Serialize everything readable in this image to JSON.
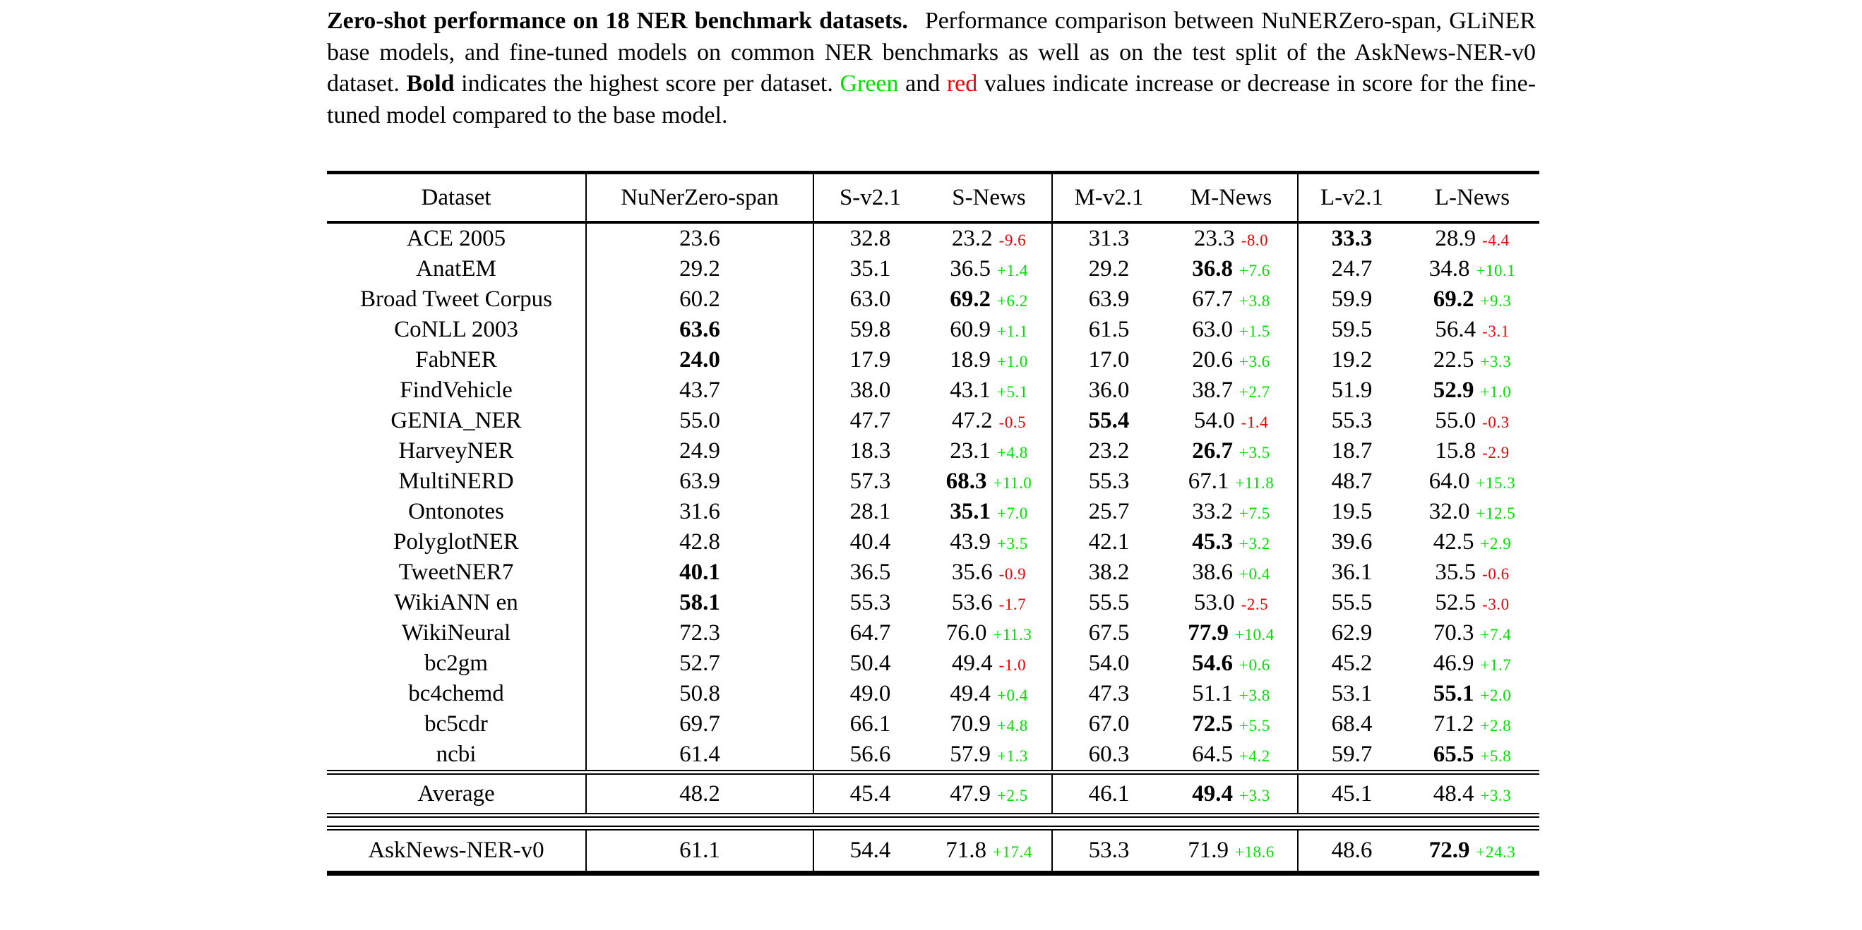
{
  "colors": {
    "green": "#00e100",
    "red": "#f30000",
    "text": "#000000",
    "background": "#ffffff"
  },
  "caption": {
    "segments": [
      {
        "text": "Zero-shot performance on 18 NER benchmark datasets.",
        "style": "bold",
        "gap_after": true
      },
      {
        "text": "Performance comparison between NuNERZero-span, GLiNER base models, and fine-tuned models on common NER benchmarks as well as on the test split of the AskNews-NER-v0 dataset. ",
        "style": "normal"
      },
      {
        "text": "Bold",
        "style": "bold"
      },
      {
        "text": " indicates the highest score per dataset. ",
        "style": "normal"
      },
      {
        "text": "Green",
        "style": "green"
      },
      {
        "text": " and ",
        "style": "normal"
      },
      {
        "text": "red",
        "style": "red"
      },
      {
        "text": " values indicate increase or decrease in score for the fine-tuned model compared to the base model.",
        "style": "normal"
      }
    ]
  },
  "table": {
    "columns": [
      {
        "key": "dataset",
        "label": "Dataset"
      },
      {
        "key": "nunerzero-span",
        "label": "NuNerZero-span"
      },
      {
        "key": "s-v2-1",
        "label": "S-v2.1"
      },
      {
        "key": "s-news",
        "label": "S-News"
      },
      {
        "key": "m-v2-1",
        "label": "M-v2.1"
      },
      {
        "key": "m-news",
        "label": "M-News"
      },
      {
        "key": "l-v2-1",
        "label": "L-v2.1"
      },
      {
        "key": "l-news",
        "label": "L-News"
      }
    ],
    "body_rows": [
      {
        "cells": [
          {
            "t": "ACE 2005"
          },
          {
            "t": "23.6"
          },
          {
            "t": "32.8"
          },
          {
            "t": "23.2",
            "d": "-9.6"
          },
          {
            "t": "31.3"
          },
          {
            "t": "23.3",
            "d": "-8.0"
          },
          {
            "t": "33.3",
            "b": true
          },
          {
            "t": "28.9",
            "d": "-4.4"
          }
        ]
      },
      {
        "cells": [
          {
            "t": "AnatEM"
          },
          {
            "t": "29.2"
          },
          {
            "t": "35.1"
          },
          {
            "t": "36.5",
            "d": "+1.4"
          },
          {
            "t": "29.2"
          },
          {
            "t": "36.8",
            "b": true,
            "d": "+7.6"
          },
          {
            "t": "24.7"
          },
          {
            "t": "34.8",
            "d": "+10.1"
          }
        ]
      },
      {
        "cells": [
          {
            "t": "Broad Tweet Corpus"
          },
          {
            "t": "60.2"
          },
          {
            "t": "63.0"
          },
          {
            "t": "69.2",
            "b": true,
            "d": "+6.2"
          },
          {
            "t": "63.9"
          },
          {
            "t": "67.7",
            "d": "+3.8"
          },
          {
            "t": "59.9"
          },
          {
            "t": "69.2",
            "b": true,
            "d": "+9.3"
          }
        ]
      },
      {
        "cells": [
          {
            "t": "CoNLL 2003"
          },
          {
            "t": "63.6",
            "b": true
          },
          {
            "t": "59.8"
          },
          {
            "t": "60.9",
            "d": "+1.1"
          },
          {
            "t": "61.5"
          },
          {
            "t": "63.0",
            "d": "+1.5"
          },
          {
            "t": "59.5"
          },
          {
            "t": "56.4",
            "d": "-3.1"
          }
        ]
      },
      {
        "cells": [
          {
            "t": "FabNER"
          },
          {
            "t": "24.0",
            "b": true
          },
          {
            "t": "17.9"
          },
          {
            "t": "18.9",
            "d": "+1.0"
          },
          {
            "t": "17.0"
          },
          {
            "t": "20.6",
            "d": "+3.6"
          },
          {
            "t": "19.2"
          },
          {
            "t": "22.5",
            "d": "+3.3"
          }
        ]
      },
      {
        "cells": [
          {
            "t": "FindVehicle"
          },
          {
            "t": "43.7"
          },
          {
            "t": "38.0"
          },
          {
            "t": "43.1",
            "d": "+5.1"
          },
          {
            "t": "36.0"
          },
          {
            "t": "38.7",
            "d": "+2.7"
          },
          {
            "t": "51.9"
          },
          {
            "t": "52.9",
            "b": true,
            "d": "+1.0"
          }
        ]
      },
      {
        "cells": [
          {
            "t": "GENIA_NER"
          },
          {
            "t": "55.0"
          },
          {
            "t": "47.7"
          },
          {
            "t": "47.2",
            "d": "-0.5"
          },
          {
            "t": "55.4",
            "b": true
          },
          {
            "t": "54.0",
            "d": "-1.4"
          },
          {
            "t": "55.3"
          },
          {
            "t": "55.0",
            "d": "-0.3"
          }
        ]
      },
      {
        "cells": [
          {
            "t": "HarveyNER"
          },
          {
            "t": "24.9"
          },
          {
            "t": "18.3"
          },
          {
            "t": "23.1",
            "d": "+4.8"
          },
          {
            "t": "23.2"
          },
          {
            "t": "26.7",
            "b": true,
            "d": "+3.5"
          },
          {
            "t": "18.7"
          },
          {
            "t": "15.8",
            "d": "-2.9"
          }
        ]
      },
      {
        "cells": [
          {
            "t": "MultiNERD"
          },
          {
            "t": "63.9"
          },
          {
            "t": "57.3"
          },
          {
            "t": "68.3",
            "b": true,
            "d": "+11.0"
          },
          {
            "t": "55.3"
          },
          {
            "t": "67.1",
            "d": "+11.8"
          },
          {
            "t": "48.7"
          },
          {
            "t": "64.0",
            "d": "+15.3"
          }
        ]
      },
      {
        "cells": [
          {
            "t": "Ontonotes"
          },
          {
            "t": "31.6"
          },
          {
            "t": "28.1"
          },
          {
            "t": "35.1",
            "b": true,
            "d": "+7.0"
          },
          {
            "t": "25.7"
          },
          {
            "t": "33.2",
            "d": "+7.5"
          },
          {
            "t": "19.5"
          },
          {
            "t": "32.0",
            "d": "+12.5"
          }
        ]
      },
      {
        "cells": [
          {
            "t": "PolyglotNER"
          },
          {
            "t": "42.8"
          },
          {
            "t": "40.4"
          },
          {
            "t": "43.9",
            "d": "+3.5"
          },
          {
            "t": "42.1"
          },
          {
            "t": "45.3",
            "b": true,
            "d": "+3.2"
          },
          {
            "t": "39.6"
          },
          {
            "t": "42.5",
            "d": "+2.9"
          }
        ]
      },
      {
        "cells": [
          {
            "t": "TweetNER7"
          },
          {
            "t": "40.1",
            "b": true
          },
          {
            "t": "36.5"
          },
          {
            "t": "35.6",
            "d": "-0.9"
          },
          {
            "t": "38.2"
          },
          {
            "t": "38.6",
            "d": "+0.4"
          },
          {
            "t": "36.1"
          },
          {
            "t": "35.5",
            "d": "-0.6"
          }
        ]
      },
      {
        "cells": [
          {
            "t": "WikiANN en"
          },
          {
            "t": "58.1",
            "b": true
          },
          {
            "t": "55.3"
          },
          {
            "t": "53.6",
            "d": "-1.7"
          },
          {
            "t": "55.5"
          },
          {
            "t": "53.0",
            "d": "-2.5"
          },
          {
            "t": "55.5"
          },
          {
            "t": "52.5",
            "d": "-3.0"
          }
        ]
      },
      {
        "cells": [
          {
            "t": "WikiNeural"
          },
          {
            "t": "72.3"
          },
          {
            "t": "64.7"
          },
          {
            "t": "76.0",
            "d": "+11.3"
          },
          {
            "t": "67.5"
          },
          {
            "t": "77.9",
            "b": true,
            "d": "+10.4"
          },
          {
            "t": "62.9"
          },
          {
            "t": "70.3",
            "d": "+7.4"
          }
        ]
      },
      {
        "cells": [
          {
            "t": "bc2gm"
          },
          {
            "t": "52.7"
          },
          {
            "t": "50.4"
          },
          {
            "t": "49.4",
            "d": "-1.0"
          },
          {
            "t": "54.0"
          },
          {
            "t": "54.6",
            "b": true,
            "d": "+0.6"
          },
          {
            "t": "45.2"
          },
          {
            "t": "46.9",
            "d": "+1.7"
          }
        ]
      },
      {
        "cells": [
          {
            "t": "bc4chemd"
          },
          {
            "t": "50.8"
          },
          {
            "t": "49.0"
          },
          {
            "t": "49.4",
            "d": "+0.4"
          },
          {
            "t": "47.3"
          },
          {
            "t": "51.1",
            "d": "+3.8"
          },
          {
            "t": "53.1"
          },
          {
            "t": "55.1",
            "b": true,
            "d": "+2.0"
          }
        ]
      },
      {
        "cells": [
          {
            "t": "bc5cdr"
          },
          {
            "t": "69.7"
          },
          {
            "t": "66.1"
          },
          {
            "t": "70.9",
            "d": "+4.8"
          },
          {
            "t": "67.0"
          },
          {
            "t": "72.5",
            "b": true,
            "d": "+5.5"
          },
          {
            "t": "68.4"
          },
          {
            "t": "71.2",
            "d": "+2.8"
          }
        ]
      },
      {
        "cells": [
          {
            "t": "ncbi"
          },
          {
            "t": "61.4"
          },
          {
            "t": "56.6"
          },
          {
            "t": "57.9",
            "d": "+1.3"
          },
          {
            "t": "60.3"
          },
          {
            "t": "64.5",
            "d": "+4.2"
          },
          {
            "t": "59.7"
          },
          {
            "t": "65.5",
            "b": true,
            "d": "+5.8"
          }
        ]
      }
    ],
    "average_rows": [
      {
        "cells": [
          {
            "t": "Average"
          },
          {
            "t": "48.2"
          },
          {
            "t": "45.4"
          },
          {
            "t": "47.9",
            "d": "+2.5"
          },
          {
            "t": "46.1"
          },
          {
            "t": "49.4",
            "b": true,
            "d": "+3.3"
          },
          {
            "t": "45.1"
          },
          {
            "t": "48.4",
            "d": "+3.3"
          }
        ]
      }
    ],
    "asknews_rows": [
      {
        "cells": [
          {
            "t": "AskNews-NER-v0"
          },
          {
            "t": "61.1"
          },
          {
            "t": "54.4"
          },
          {
            "t": "71.8",
            "d": "+17.4"
          },
          {
            "t": "53.3"
          },
          {
            "t": "71.9",
            "d": "+18.6"
          },
          {
            "t": "48.6"
          },
          {
            "t": "72.9",
            "b": true,
            "d": "+24.3"
          }
        ]
      }
    ]
  }
}
